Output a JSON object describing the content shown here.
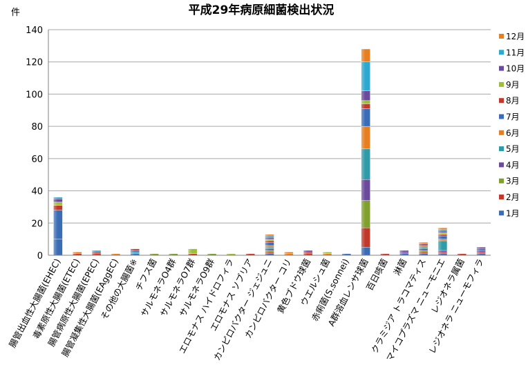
{
  "chart_data": {
    "type": "bar",
    "stacked": true,
    "title": "平成29年病原細菌検出状況",
    "ylabel": "件",
    "ylim": [
      0,
      140
    ],
    "yticks": [
      0,
      20,
      40,
      60,
      80,
      100,
      120,
      140
    ],
    "grid": true,
    "legend_position": "right",
    "categories": [
      "腸管出血性大腸菌(EHEC)",
      "毒素原性大腸菌(ETEC)",
      "腸管病原性大腸菌(EPEC)",
      "腸管凝集性大腸菌(EAggEC)",
      "その他の大腸菌※",
      "チフス菌",
      "サルモネラO4群",
      "サルモネラO7群",
      "サルモネラO9群",
      "エロモナス ハイドロフィラ",
      "エロモナス ソブリア",
      "カンピロバクター ジェジュニ",
      "カンピロバクター コリ",
      "黄色ブドウ球菌",
      "ウエルシュ菌",
      "赤痢菌(S.sonnei)",
      "A群溶血レンサ球菌",
      "百日咳菌",
      "淋菌",
      "クラミジア トラコマティス",
      "マイコプラズマ ニューモニエ",
      "レジオネラ属菌",
      "レジオネラ ニューモフィラ"
    ],
    "series": [
      {
        "name": "1月",
        "color": "#3a6db5",
        "values": [
          10,
          0,
          0,
          0,
          1,
          0,
          0,
          0,
          0,
          0,
          0,
          1,
          0,
          0,
          0,
          0,
          5,
          0,
          1,
          1,
          1,
          0,
          1
        ]
      },
      {
        "name": "2月",
        "color": "#c0392b",
        "values": [
          0,
          1,
          1,
          0,
          0,
          0,
          0,
          1,
          0,
          0,
          1,
          1,
          0,
          1,
          0,
          0,
          12,
          1,
          0,
          1,
          1,
          1,
          1
        ]
      },
      {
        "name": "3月",
        "color": "#7fa02e",
        "values": [
          0,
          0,
          0,
          0,
          0,
          1,
          1,
          0,
          1,
          0,
          0,
          1,
          0,
          0,
          0,
          0,
          17,
          0,
          0,
          1,
          0,
          0,
          0
        ]
      },
      {
        "name": "4月",
        "color": "#6b4a9b",
        "values": [
          0,
          0,
          0,
          0,
          0,
          0,
          0,
          0,
          0,
          0,
          0,
          1,
          0,
          0,
          0,
          0,
          13,
          0,
          1,
          1,
          1,
          0,
          1
        ]
      },
      {
        "name": "5月",
        "color": "#2f9aa8",
        "values": [
          0,
          0,
          0,
          0,
          1,
          0,
          0,
          0,
          0,
          0,
          0,
          1,
          0,
          0,
          0,
          0,
          19,
          0,
          0,
          1,
          6,
          0,
          0
        ]
      },
      {
        "name": "6月",
        "color": "#e67e22",
        "values": [
          0,
          0,
          0,
          1,
          0,
          0,
          0,
          0,
          0,
          0,
          0,
          1,
          1,
          0,
          1,
          0,
          14,
          0,
          0,
          1,
          1,
          0,
          0
        ]
      },
      {
        "name": "7月",
        "color": "#3a6db5",
        "values": [
          18,
          0,
          0,
          0,
          1,
          0,
          0,
          0,
          0,
          0,
          0,
          2,
          0,
          0,
          0,
          1,
          11,
          0,
          0,
          0,
          2,
          0,
          1
        ]
      },
      {
        "name": "8月",
        "color": "#c0392b",
        "values": [
          3,
          0,
          1,
          0,
          1,
          0,
          0,
          0,
          0,
          0,
          0,
          1,
          0,
          1,
          0,
          0,
          3,
          0,
          0,
          0,
          1,
          0,
          0
        ]
      },
      {
        "name": "9月",
        "color": "#9cbf3a",
        "values": [
          2,
          0,
          0,
          0,
          0,
          0,
          0,
          3,
          0,
          1,
          0,
          1,
          0,
          0,
          1,
          0,
          2,
          0,
          0,
          0,
          1,
          0,
          0
        ]
      },
      {
        "name": "10月",
        "color": "#6b4a9b",
        "values": [
          2,
          0,
          0,
          0,
          0,
          0,
          0,
          0,
          0,
          0,
          0,
          1,
          0,
          1,
          0,
          0,
          6,
          0,
          1,
          1,
          1,
          0,
          1
        ]
      },
      {
        "name": "11月",
        "color": "#2fa8d0",
        "values": [
          1,
          0,
          1,
          0,
          0,
          0,
          0,
          0,
          0,
          0,
          0,
          1,
          0,
          0,
          0,
          0,
          18,
          0,
          0,
          0,
          1,
          0,
          0
        ]
      },
      {
        "name": "12月",
        "color": "#e67e22",
        "values": [
          0,
          1,
          0,
          0,
          0,
          0,
          0,
          0,
          0,
          0,
          0,
          1,
          1,
          0,
          0,
          0,
          8,
          0,
          0,
          1,
          1,
          0,
          0
        ]
      }
    ]
  }
}
